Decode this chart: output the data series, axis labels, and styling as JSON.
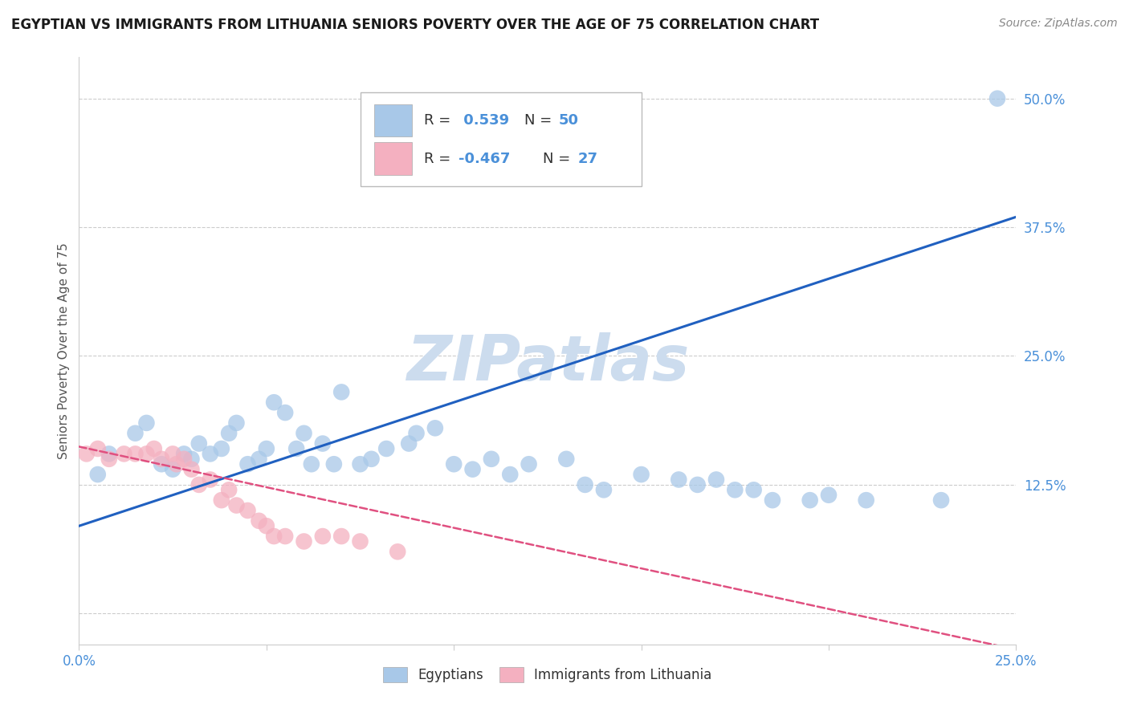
{
  "title": "EGYPTIAN VS IMMIGRANTS FROM LITHUANIA SENIORS POVERTY OVER THE AGE OF 75 CORRELATION CHART",
  "source": "Source: ZipAtlas.com",
  "ylabel": "Seniors Poverty Over the Age of 75",
  "xlim": [
    0.0,
    0.25
  ],
  "ylim": [
    -0.03,
    0.54
  ],
  "xticks": [
    0.0,
    0.05,
    0.1,
    0.15,
    0.2,
    0.25
  ],
  "xticklabels": [
    "0.0%",
    "",
    "",
    "",
    "",
    "25.0%"
  ],
  "yticks": [
    0.0,
    0.125,
    0.25,
    0.375,
    0.5
  ],
  "yticklabels": [
    "",
    "12.5%",
    "25.0%",
    "37.5%",
    "50.0%"
  ],
  "blue_color": "#a8c8e8",
  "pink_color": "#f4b0c0",
  "trend_blue": "#2060c0",
  "trend_pink": "#e05080",
  "watermark": "ZIPatlas",
  "watermark_color": "#ccdcee",
  "blue_scatter_x": [
    0.005,
    0.008,
    0.015,
    0.018,
    0.022,
    0.025,
    0.028,
    0.03,
    0.032,
    0.035,
    0.038,
    0.04,
    0.042,
    0.045,
    0.048,
    0.05,
    0.052,
    0.055,
    0.058,
    0.06,
    0.062,
    0.065,
    0.068,
    0.07,
    0.075,
    0.078,
    0.082,
    0.088,
    0.09,
    0.095,
    0.1,
    0.105,
    0.11,
    0.115,
    0.12,
    0.13,
    0.135,
    0.14,
    0.15,
    0.16,
    0.165,
    0.17,
    0.175,
    0.18,
    0.185,
    0.195,
    0.2,
    0.21,
    0.23,
    0.245
  ],
  "blue_scatter_y": [
    0.135,
    0.155,
    0.175,
    0.185,
    0.145,
    0.14,
    0.155,
    0.15,
    0.165,
    0.155,
    0.16,
    0.175,
    0.185,
    0.145,
    0.15,
    0.16,
    0.205,
    0.195,
    0.16,
    0.175,
    0.145,
    0.165,
    0.145,
    0.215,
    0.145,
    0.15,
    0.16,
    0.165,
    0.175,
    0.18,
    0.145,
    0.14,
    0.15,
    0.135,
    0.145,
    0.15,
    0.125,
    0.12,
    0.135,
    0.13,
    0.125,
    0.13,
    0.12,
    0.12,
    0.11,
    0.11,
    0.115,
    0.11,
    0.11,
    0.5
  ],
  "pink_scatter_x": [
    0.002,
    0.005,
    0.008,
    0.012,
    0.015,
    0.018,
    0.02,
    0.022,
    0.025,
    0.026,
    0.028,
    0.03,
    0.032,
    0.035,
    0.038,
    0.04,
    0.042,
    0.045,
    0.048,
    0.05,
    0.052,
    0.055,
    0.06,
    0.065,
    0.07,
    0.075,
    0.085
  ],
  "pink_scatter_y": [
    0.155,
    0.16,
    0.15,
    0.155,
    0.155,
    0.155,
    0.16,
    0.15,
    0.155,
    0.145,
    0.15,
    0.14,
    0.125,
    0.13,
    0.11,
    0.12,
    0.105,
    0.1,
    0.09,
    0.085,
    0.075,
    0.075,
    0.07,
    0.075,
    0.075,
    0.07,
    0.06
  ],
  "blue_line_x": [
    0.0,
    0.25
  ],
  "blue_line_y": [
    0.085,
    0.385
  ],
  "pink_line_x": [
    0.0,
    0.25
  ],
  "pink_line_y": [
    0.162,
    -0.035
  ],
  "grid_color": "#cccccc",
  "spine_color": "#cccccc",
  "tick_color": "#4a90d9",
  "text_dark": "#333333",
  "text_blue": "#4a90d9"
}
